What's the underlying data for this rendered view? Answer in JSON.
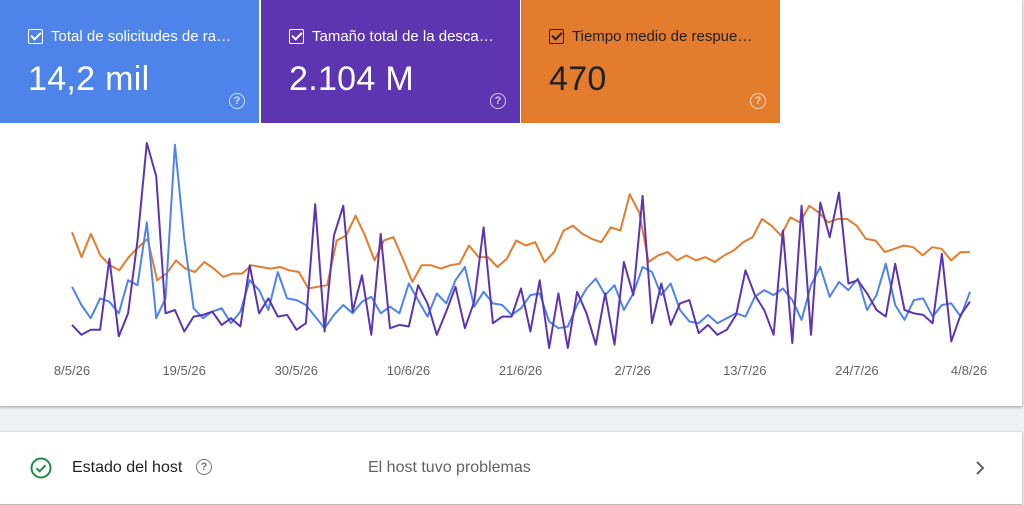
{
  "metrics": [
    {
      "label": "Total de solicitudes de ras…",
      "value": "14,2 mil",
      "color": "#4e84ea",
      "checked": true
    },
    {
      "label": "Tamaño total de la descar…",
      "value": "2.104 M",
      "color": "#5e35b1",
      "checked": true
    },
    {
      "label": "Tiempo medio de respuest…",
      "value": "470",
      "color": "#e37c2c",
      "checked": true
    }
  ],
  "chart_data": {
    "type": "line",
    "x_tick_labels": [
      "8/5/26",
      "19/5/26",
      "30/5/26",
      "10/6/26",
      "21/6/26",
      "2/7/26",
      "13/7/26",
      "24/7/26",
      "4/8/26"
    ],
    "grid": false,
    "legend": "none",
    "series": [
      {
        "color": "#e37c2c",
        "values": [
          62,
          47,
          61,
          48,
          42,
          39,
          47,
          53,
          58,
          33,
          37,
          45,
          40,
          38,
          44,
          40,
          35,
          37,
          37,
          42,
          41,
          40,
          41,
          39,
          38,
          28,
          29,
          30,
          57,
          60,
          72,
          60,
          45,
          57,
          59,
          46,
          32,
          42,
          42,
          40,
          42,
          43,
          54,
          47,
          47,
          41,
          46,
          57,
          54,
          56,
          44,
          50,
          63,
          66,
          61,
          58,
          56,
          65,
          63,
          85,
          74,
          44,
          48,
          50,
          45,
          48,
          45,
          47,
          44,
          48,
          51,
          56,
          59,
          70,
          66,
          60,
          71,
          68,
          78,
          74,
          68,
          70,
          70,
          66,
          58,
          57,
          50,
          52,
          54,
          53,
          48,
          53,
          52,
          45,
          50,
          50
        ]
      },
      {
        "color": "#4e84ea",
        "values": [
          29,
          18,
          10,
          22,
          20,
          13,
          33,
          30,
          68,
          10,
          22,
          115,
          58,
          16,
          10,
          14,
          16,
          7,
          14,
          33,
          27,
          15,
          38,
          22,
          21,
          18,
          11,
          4,
          12,
          18,
          13,
          20,
          23,
          13,
          17,
          13,
          31,
          21,
          11,
          25,
          19,
          33,
          41,
          17,
          26,
          19,
          18,
          12,
          16,
          24,
          25,
          8,
          4,
          5,
          18,
          28,
          34,
          24,
          30,
          15,
          25,
          41,
          38,
          24,
          31,
          15,
          8,
          7,
          12,
          7,
          10,
          13,
          11,
          23,
          27,
          24,
          28,
          21,
          9,
          30,
          41,
          23,
          32,
          27,
          34,
          15,
          24,
          43,
          18,
          9,
          21,
          22,
          11,
          18,
          19,
          11,
          26
        ]
      },
      {
        "color": "#5e35b1",
        "values": [
          6,
          0,
          3,
          3,
          46,
          -1,
          13,
          57,
          116,
          96,
          13,
          15,
          2,
          11,
          12,
          14,
          6,
          10,
          5,
          42,
          13,
          22,
          11,
          12,
          3,
          7,
          79,
          2,
          60,
          78,
          14,
          36,
          0,
          61,
          4,
          6,
          5,
          30,
          19,
          0,
          14,
          29,
          4,
          20,
          65,
          7,
          11,
          11,
          28,
          2,
          33,
          -8,
          25,
          -8,
          26,
          13,
          -6,
          25,
          -6,
          44,
          24,
          84,
          7,
          31,
          6,
          19,
          21,
          1,
          6,
          0,
          3,
          12,
          39,
          24,
          15,
          0,
          63,
          -5,
          78,
          0,
          80,
          59,
          86,
          31,
          33,
          25,
          15,
          11,
          43,
          15,
          13,
          12,
          7,
          49,
          -4,
          12,
          20
        ]
      }
    ]
  },
  "host_status": {
    "label": "Estado del host",
    "value": "El host tuvo problemas",
    "status_color": "#1e8e3e"
  }
}
